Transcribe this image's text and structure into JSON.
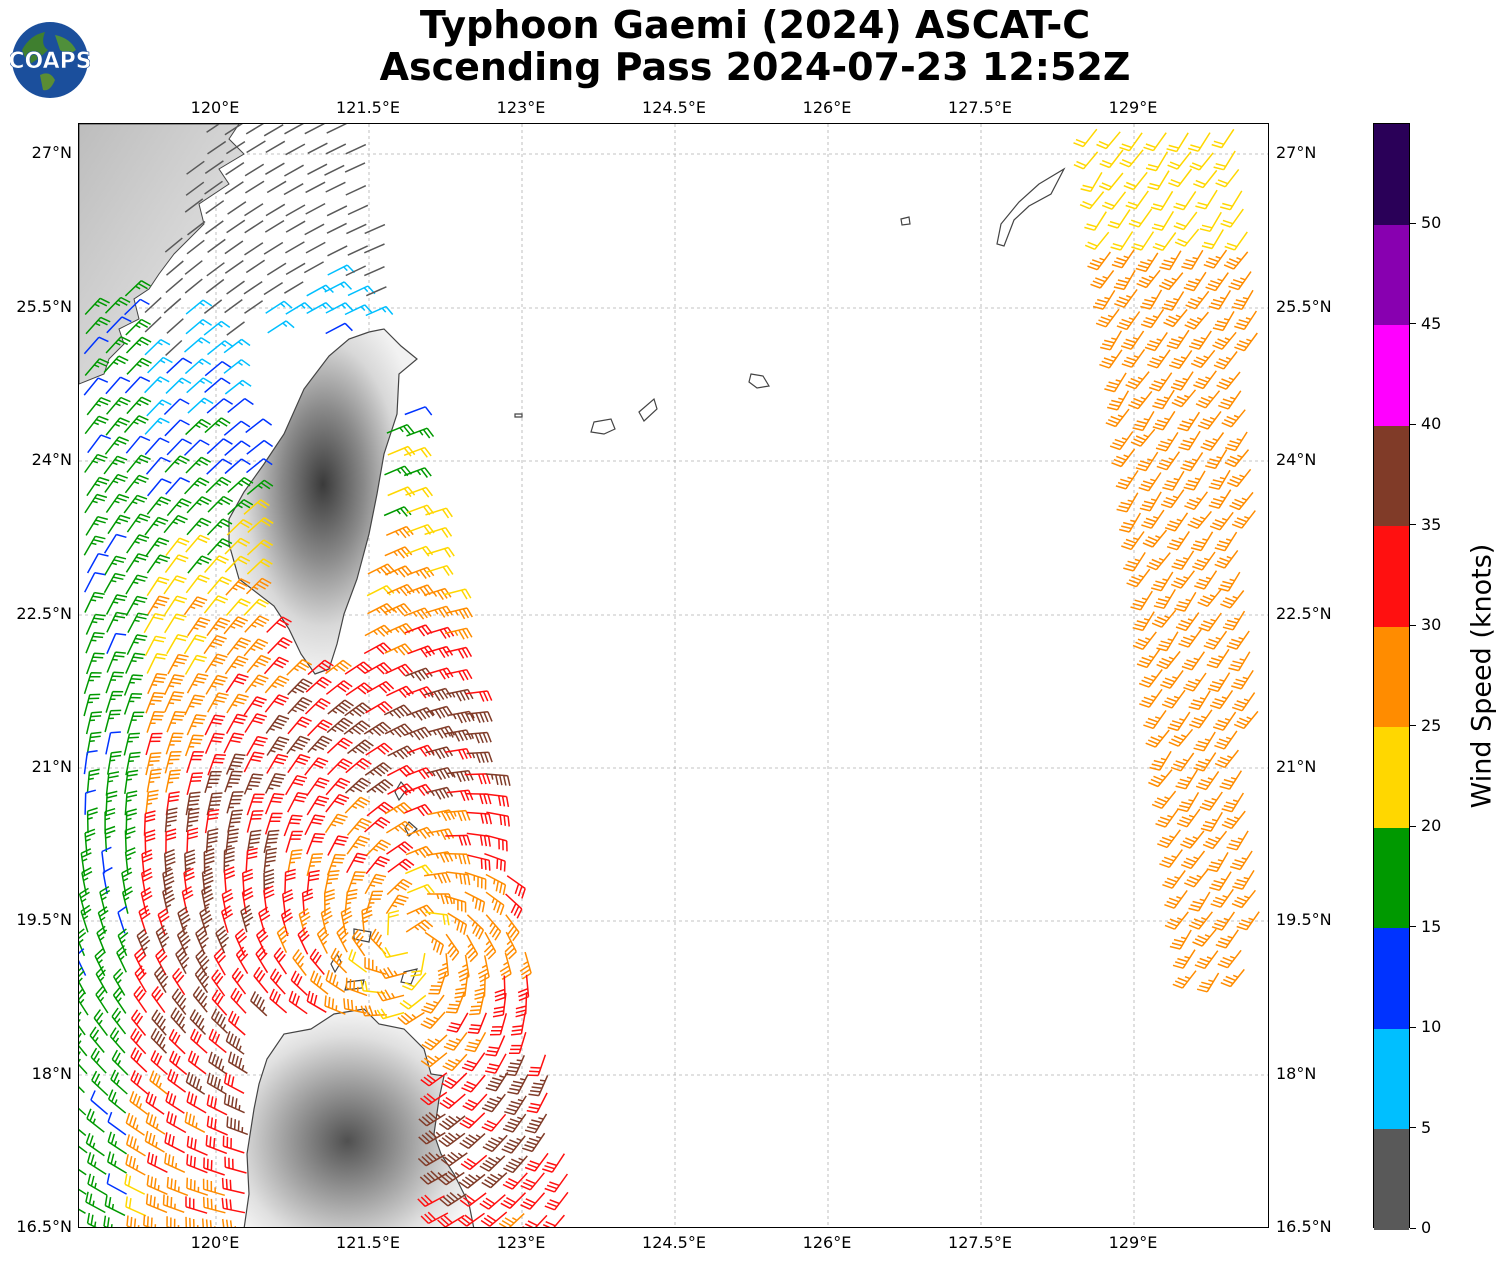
{
  "title": {
    "line1": "Typhoon Gaemi (2024) ASCAT-C",
    "line2": "Ascending Pass 2024-07-23 12:52Z"
  },
  "logo": {
    "text": "COAPS",
    "icon": "globe-icon"
  },
  "map": {
    "lon_labels": [
      "120°E",
      "121.5°E",
      "123°E",
      "124.5°E",
      "126°E",
      "127.5°E",
      "129°E"
    ],
    "lat_labels": [
      "27°N",
      "25.5°N",
      "24°N",
      "22.5°N",
      "21°N",
      "19.5°N",
      "18°N",
      "16.5°N"
    ],
    "gridlines": true,
    "features": [
      "Taiwan",
      "Luzon",
      "Ryukyu Islands",
      "Batanes Islands",
      "China coast"
    ]
  },
  "colorbar": {
    "title": "Wind Speed (knots)",
    "ticks": [
      "0",
      "5",
      "10",
      "15",
      "20",
      "25",
      "30",
      "35",
      "40",
      "45",
      "50"
    ],
    "colors": [
      "#595959",
      "#00bfff",
      "#0033ff",
      "#009900",
      "#ffd700",
      "#ff8c00",
      "#ff1010",
      "#803b28",
      "#ff00ff",
      "#8800b0",
      "#2a0058"
    ]
  }
}
